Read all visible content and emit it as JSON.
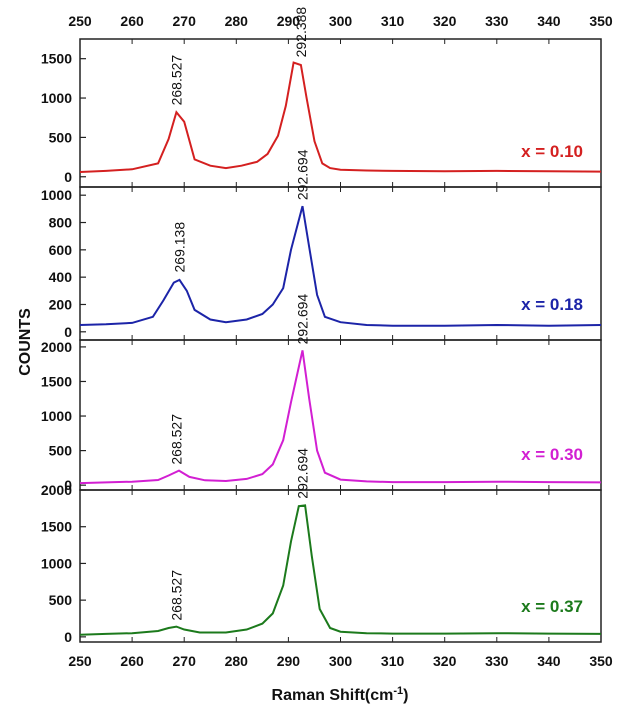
{
  "chart_data": {
    "type": "line",
    "xlabel": "Raman Shift(cm",
    "xlabel_sup": "-1",
    "xlabel_close": ")",
    "ylabel": "COUNTS",
    "xlim": [
      250,
      350
    ],
    "x_ticks": [
      250,
      260,
      270,
      280,
      290,
      300,
      310,
      320,
      330,
      340,
      350
    ],
    "panels": [
      {
        "name": "x = 0.10",
        "color": "#d42020",
        "ylim": [
          -130,
          1750
        ],
        "y_ticks": [
          0,
          500,
          1000,
          1500
        ],
        "annotations": [
          {
            "text": "268.527",
            "x": 268.527,
            "y": 830
          },
          {
            "text": "292.388",
            "x": 292.388,
            "y": 1440
          }
        ],
        "x": [
          250,
          255,
          260,
          265,
          267,
          268.5,
          270,
          272,
          275,
          278,
          281,
          284,
          286,
          288,
          289.5,
          291,
          292.4,
          293.5,
          295,
          296.5,
          298,
          300,
          305,
          310,
          320,
          330,
          340,
          350
        ],
        "y": [
          60,
          75,
          95,
          170,
          480,
          820,
          700,
          220,
          140,
          110,
          140,
          190,
          290,
          520,
          900,
          1450,
          1420,
          1000,
          450,
          170,
          110,
          90,
          80,
          75,
          70,
          75,
          70,
          65
        ]
      },
      {
        "name": "x = 0.18",
        "color": "#1c24a8",
        "ylim": [
          -60,
          1060
        ],
        "y_ticks": [
          0,
          200,
          400,
          600,
          800,
          1000
        ],
        "annotations": [
          {
            "text": "269.138",
            "x": 269.138,
            "y": 390
          },
          {
            "text": "292.694",
            "x": 292.694,
            "y": 920
          }
        ],
        "x": [
          250,
          255,
          260,
          264,
          266,
          268,
          269.1,
          270.5,
          272,
          275,
          278,
          282,
          285,
          287,
          289,
          290.5,
          292.7,
          294,
          295.5,
          297,
          300,
          305,
          310,
          320,
          330,
          340,
          350
        ],
        "y": [
          50,
          55,
          65,
          110,
          230,
          360,
          380,
          300,
          160,
          90,
          70,
          90,
          130,
          200,
          320,
          600,
          920,
          620,
          270,
          110,
          70,
          50,
          45,
          45,
          50,
          45,
          50
        ]
      },
      {
        "name": "x = 0.30",
        "color": "#d21fd2",
        "ylim": [
          -70,
          2100
        ],
        "y_ticks": [
          0,
          500,
          1000,
          1500,
          2000
        ],
        "annotations": [
          {
            "text": "268.527",
            "x": 268.527,
            "y": 210
          },
          {
            "text": "292.694",
            "x": 292.694,
            "y": 1950
          }
        ],
        "x": [
          250,
          255,
          260,
          265,
          267,
          269,
          271,
          274,
          278,
          282,
          285,
          287,
          289,
          290.5,
          292.7,
          294,
          295.5,
          297,
          300,
          305,
          310,
          320,
          330,
          340,
          350
        ],
        "y": [
          30,
          40,
          50,
          75,
          140,
          210,
          120,
          70,
          60,
          90,
          160,
          300,
          650,
          1200,
          1950,
          1250,
          500,
          180,
          80,
          55,
          45,
          45,
          50,
          45,
          40
        ]
      },
      {
        "name": "x = 0.37",
        "color": "#1c7a1c",
        "ylim": [
          -70,
          2000
        ],
        "y_ticks": [
          0,
          500,
          1000,
          1500,
          2000
        ],
        "annotations": [
          {
            "text": "268.527",
            "x": 268.527,
            "y": 140
          },
          {
            "text": "292.694",
            "x": 292.694,
            "y": 1800
          }
        ],
        "x": [
          250,
          255,
          260,
          265,
          267,
          268.5,
          270,
          273,
          278,
          282,
          285,
          287,
          289,
          290.5,
          292,
          293.2,
          294.5,
          296,
          298,
          300,
          305,
          310,
          320,
          330,
          340,
          350
        ],
        "y": [
          30,
          40,
          50,
          80,
          120,
          140,
          100,
          60,
          60,
          100,
          180,
          320,
          700,
          1300,
          1780,
          1790,
          1100,
          380,
          120,
          70,
          50,
          45,
          45,
          50,
          45,
          40
        ]
      }
    ]
  }
}
